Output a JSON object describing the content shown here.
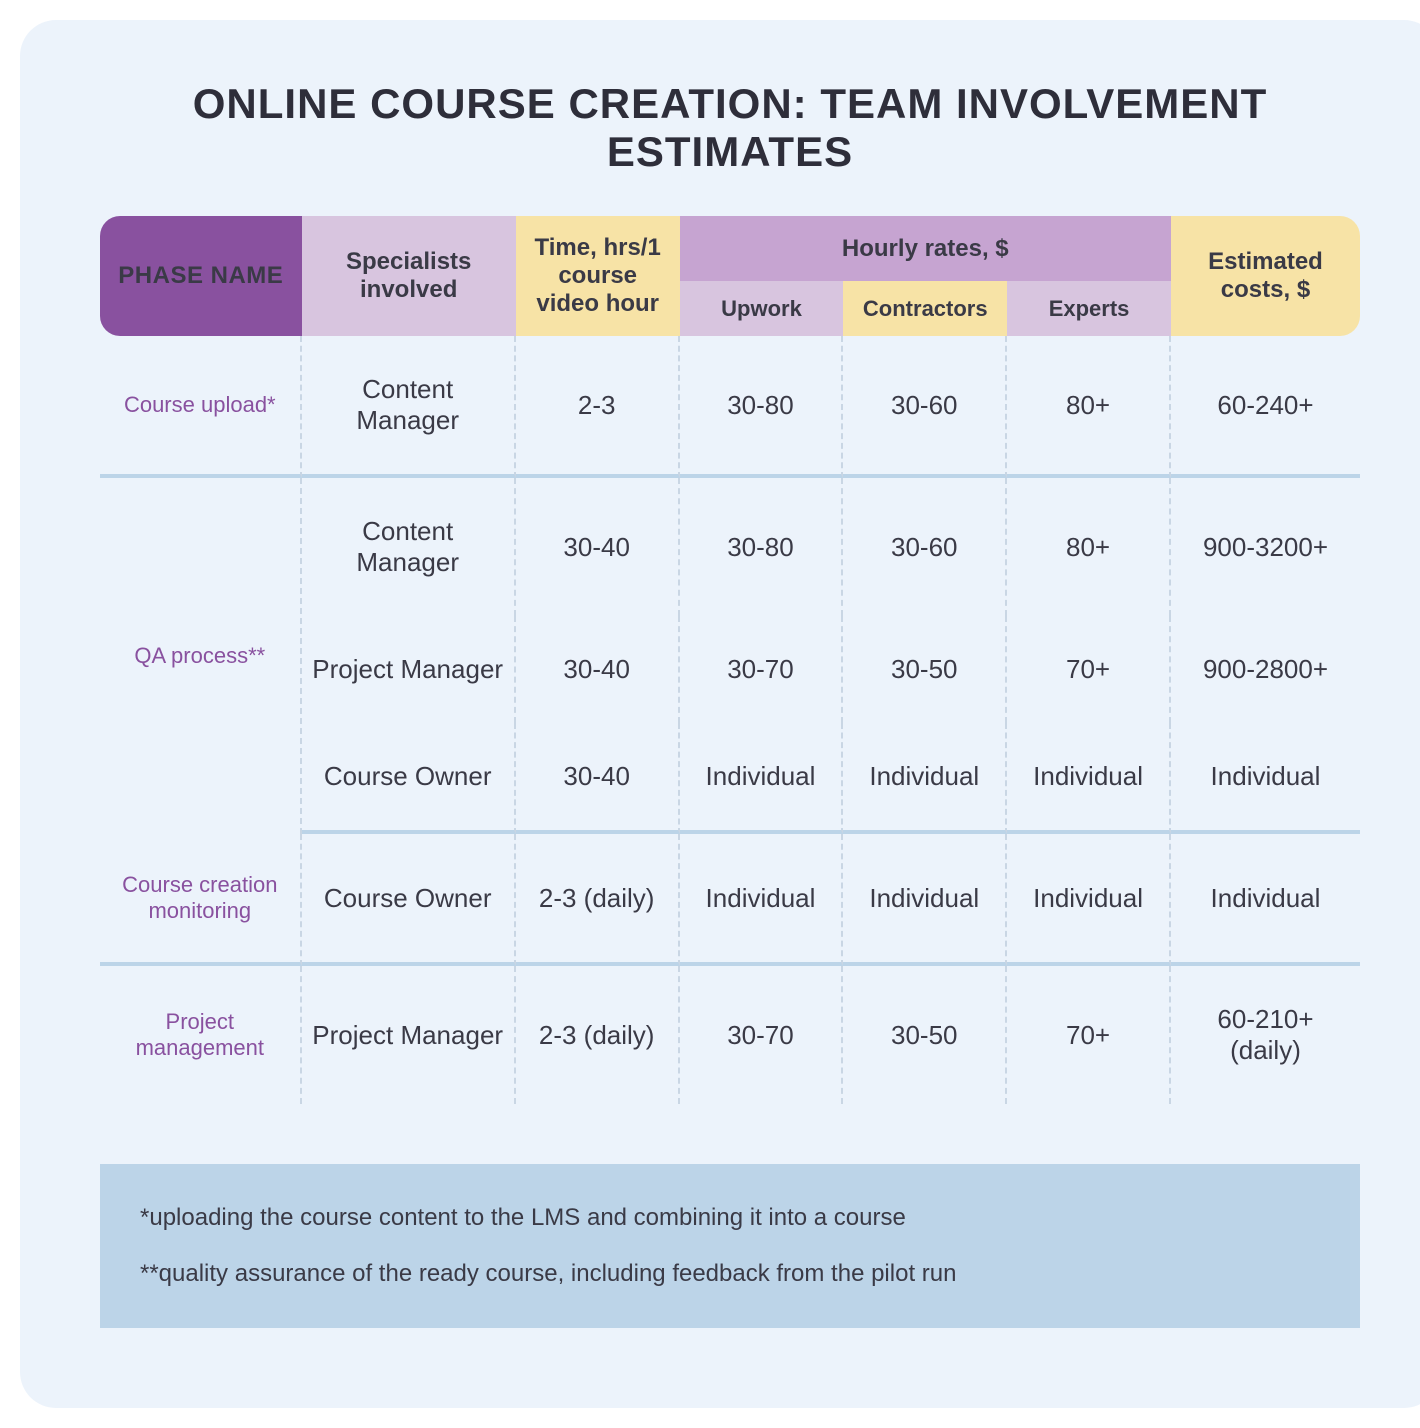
{
  "title": "ONLINE COURSE CREATION: TEAM INVOLVEMENT ESTIMATES",
  "colors": {
    "card_bg": "#ecf3fb",
    "title_text": "#2e2e3a",
    "header_phase_bg": "#89519f",
    "header_phase_text": "#ffffff",
    "header_lavender": "#d8c5df",
    "header_yellow": "#f7e3a6",
    "header_rates_bg": "#c6a4d1",
    "body_text": "#3a3a46",
    "phase_text": "#89519f",
    "section_divider": "#bcd4e8",
    "cell_divider": "#c9d6e4",
    "footnote_bg": "#bcd4e8"
  },
  "columns": {
    "phase": "PHASE NAME",
    "specialists": "Specialists involved",
    "time": "Time, hrs/1 course video hour",
    "rates_group": "Hourly rates, $",
    "upwork": "Upwork",
    "contractors": "Contractors",
    "experts": "Experts",
    "estimated": "Estimated costs, $"
  },
  "phases": [
    {
      "name": "Course upload*",
      "rows": [
        {
          "specialist": "Content Manager",
          "time": "2-3",
          "upwork": "30-80",
          "contractors": "30-60",
          "experts": "80+",
          "estimated": "60-240+"
        }
      ]
    },
    {
      "name": "QA process**",
      "rows": [
        {
          "specialist": "Content Manager",
          "time": "30-40",
          "upwork": "30-80",
          "contractors": "30-60",
          "experts": "80+",
          "estimated": "900-3200+"
        },
        {
          "specialist": "Project Manager",
          "time": "30-40",
          "upwork": "30-70",
          "contractors": "30-50",
          "experts": "70+",
          "estimated": "900-2800+"
        },
        {
          "specialist": "Course Owner",
          "time": "30-40",
          "upwork": "Individual",
          "contractors": "Individual",
          "experts": "Individual",
          "estimated": "Individual"
        }
      ]
    },
    {
      "name": "Course creation monitoring",
      "rows": [
        {
          "specialist": "Course Owner",
          "time": "2-3 (daily)",
          "upwork": "Individual",
          "contractors": "Individual",
          "experts": "Individual",
          "estimated": "Individual"
        }
      ]
    },
    {
      "name": "Project management",
      "rows": [
        {
          "specialist": "Project Manager",
          "time": "2-3 (daily)",
          "upwork": "30-70",
          "contractors": "30-50",
          "experts": "70+",
          "estimated": "60-210+ (daily)"
        }
      ]
    }
  ],
  "footnotes": [
    "*uploading the course content to the LMS and combining it into a course",
    "**quality assurance of the ready course, including feedback from the pilot run"
  ]
}
